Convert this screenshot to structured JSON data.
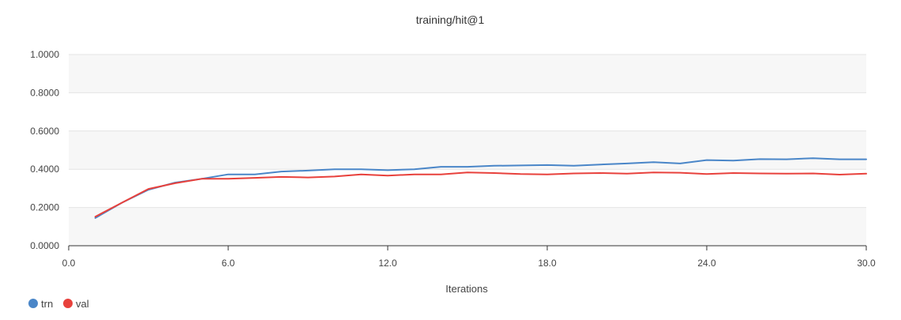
{
  "chart_data": {
    "type": "line",
    "title": "training/hit@1",
    "xlabel": "Iterations",
    "ylabel": "",
    "xlim": [
      0,
      30
    ],
    "ylim": [
      0,
      1
    ],
    "x_ticks": [
      0,
      6,
      12,
      18,
      24,
      30
    ],
    "x_tick_labels": [
      "0.0",
      "6.0",
      "12.0",
      "18.0",
      "24.0",
      "30.0"
    ],
    "y_ticks": [
      0,
      0.2,
      0.4,
      0.6,
      0.8,
      1.0
    ],
    "y_tick_labels": [
      "0.0000",
      "0.2000",
      "0.4000",
      "0.6000",
      "0.8000",
      "1.0000"
    ],
    "grid": true,
    "legend_position": "bottom-left",
    "x": [
      1,
      2,
      3,
      4,
      5,
      6,
      7,
      8,
      9,
      10,
      11,
      12,
      13,
      14,
      15,
      16,
      17,
      18,
      19,
      20,
      21,
      22,
      23,
      24,
      25,
      26,
      27,
      28,
      29,
      30
    ],
    "series": [
      {
        "name": "trn",
        "color": "#4a86c8",
        "values": [
          0.145,
          0.225,
          0.293,
          0.33,
          0.35,
          0.373,
          0.373,
          0.388,
          0.393,
          0.4,
          0.4,
          0.395,
          0.4,
          0.413,
          0.413,
          0.418,
          0.42,
          0.422,
          0.418,
          0.425,
          0.43,
          0.437,
          0.43,
          0.448,
          0.445,
          0.453,
          0.452,
          0.458,
          0.452,
          0.452
        ]
      },
      {
        "name": "val",
        "color": "#e8413c",
        "values": [
          0.152,
          0.225,
          0.297,
          0.327,
          0.35,
          0.35,
          0.355,
          0.36,
          0.357,
          0.362,
          0.373,
          0.367,
          0.373,
          0.373,
          0.383,
          0.38,
          0.375,
          0.373,
          0.378,
          0.38,
          0.377,
          0.383,
          0.382,
          0.375,
          0.38,
          0.378,
          0.377,
          0.378,
          0.372,
          0.377
        ]
      }
    ]
  }
}
